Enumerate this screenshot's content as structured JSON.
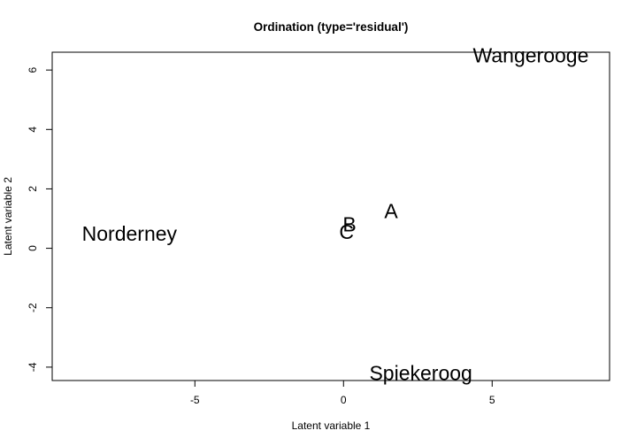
{
  "chart_data": {
    "type": "scatter",
    "title": "Ordination (type='residual')",
    "xlabel": "Latent variable 1",
    "ylabel": "Latent variable 2",
    "xlim": [
      -9.8,
      8.95
    ],
    "ylim": [
      -4.45,
      6.6
    ],
    "xticks": [
      -5,
      0,
      5
    ],
    "yticks": [
      -4,
      -2,
      0,
      2,
      4,
      6
    ],
    "grid": false,
    "points": [
      {
        "label": "Wangerooge",
        "x": 6.3,
        "y": 6.5
      },
      {
        "label": "Norderney",
        "x": -7.2,
        "y": 0.5
      },
      {
        "label": "A",
        "x": 1.6,
        "y": 1.25
      },
      {
        "label": "B",
        "x": 0.2,
        "y": 0.8
      },
      {
        "label": "C",
        "x": 0.1,
        "y": 0.55
      },
      {
        "label": "Spiekeroog",
        "x": 2.6,
        "y": -4.2
      }
    ]
  }
}
